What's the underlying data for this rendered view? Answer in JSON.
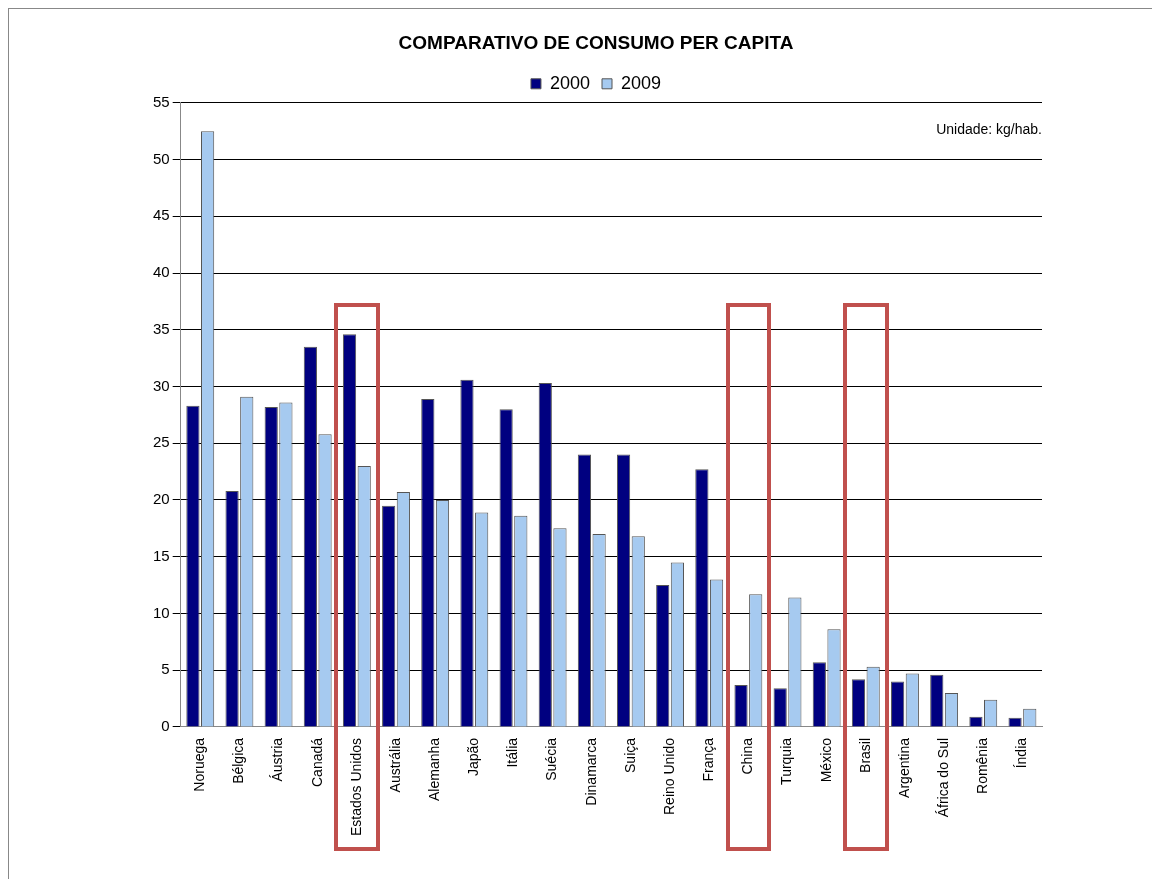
{
  "chart_data": {
    "type": "bar",
    "title": "COMPARATIVO DE CONSUMO PER CAPITA",
    "categories": [
      "Noruega",
      "Bélgica",
      "Áustria",
      "Canadá",
      "Estados Unidos",
      "Austrália",
      "Alemanha",
      "Japão",
      "Itália",
      "Suécia",
      "Dinamarca",
      "Suiça",
      "Reino Unido",
      "França",
      "China",
      "Turquia",
      "México",
      "Brasil",
      "Argentina",
      "África do Sul",
      "Romênia",
      "Índia"
    ],
    "series": [
      {
        "name": "2000",
        "color": "#000080",
        "values": [
          28.3,
          20.8,
          28.2,
          33.5,
          34.6,
          19.5,
          28.9,
          30.6,
          28,
          30.3,
          24,
          24,
          12.5,
          22.7,
          3.7,
          3.4,
          5.7,
          4.2,
          4,
          4.6,
          0.9,
          0.8
        ]
      },
      {
        "name": "2009",
        "color": "#a6caf0",
        "values": [
          52.5,
          29.1,
          28.6,
          25.8,
          23,
          20.7,
          20,
          18.9,
          18.6,
          17.5,
          17,
          16.8,
          14.5,
          13,
          11.7,
          11.4,
          8.6,
          5.3,
          4.7,
          3,
          2.4,
          1.6
        ]
      }
    ],
    "ylim": [
      0,
      55
    ],
    "yticks": [
      0,
      5,
      10,
      15,
      20,
      25,
      30,
      35,
      40,
      45,
      50,
      55
    ],
    "grid": "y",
    "legend": "top",
    "annotations": [
      "Unidade: kg/hab."
    ]
  }
}
